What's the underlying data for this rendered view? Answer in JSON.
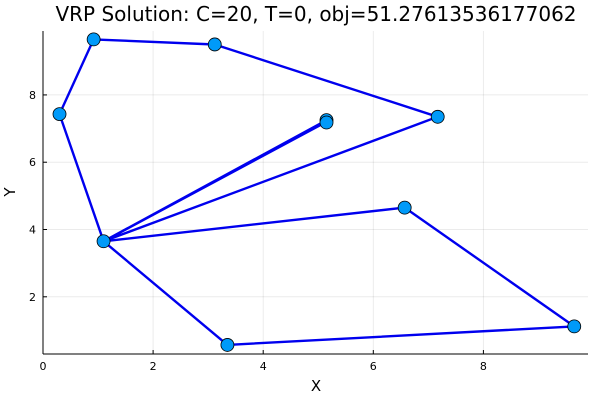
{
  "chart_data": {
    "type": "line",
    "title": "VRP Solution: C=20, T=0, obj=51.27613536177062",
    "xlabel": "X",
    "ylabel": "Y",
    "xlim": [
      0,
      9.9
    ],
    "ylim": [
      0.3,
      9.9
    ],
    "xticks": [
      0,
      2,
      4,
      6,
      8
    ],
    "yticks": [
      2,
      4,
      6,
      8
    ],
    "grid": true,
    "legend": "none",
    "colors": {
      "route": "#0000ee",
      "marker": "#009af9"
    },
    "series": [
      {
        "values": [
          {
            "x": 5.15,
            "y": 7.2
          },
          {
            "x": 1.1,
            "y": 3.65
          },
          {
            "x": 3.35,
            "y": 0.57
          },
          {
            "x": 9.65,
            "y": 1.12
          },
          {
            "x": 6.57,
            "y": 4.65
          },
          {
            "x": 1.1,
            "y": 3.65
          },
          {
            "x": 7.17,
            "y": 7.35
          },
          {
            "x": 3.12,
            "y": 9.5
          },
          {
            "x": 0.92,
            "y": 9.65
          },
          {
            "x": 0.3,
            "y": 7.43
          },
          {
            "x": 1.1,
            "y": 3.65
          },
          {
            "x": 5.15,
            "y": 7.25
          }
        ]
      }
    ],
    "points": [
      {
        "x": 5.15,
        "y": 7.25
      },
      {
        "x": 5.15,
        "y": 7.18
      },
      {
        "x": 1.1,
        "y": 3.65
      },
      {
        "x": 3.35,
        "y": 0.57
      },
      {
        "x": 9.65,
        "y": 1.12
      },
      {
        "x": 6.57,
        "y": 4.65
      },
      {
        "x": 7.17,
        "y": 7.35
      },
      {
        "x": 3.12,
        "y": 9.5
      },
      {
        "x": 0.92,
        "y": 9.65
      },
      {
        "x": 0.3,
        "y": 7.43
      }
    ]
  }
}
